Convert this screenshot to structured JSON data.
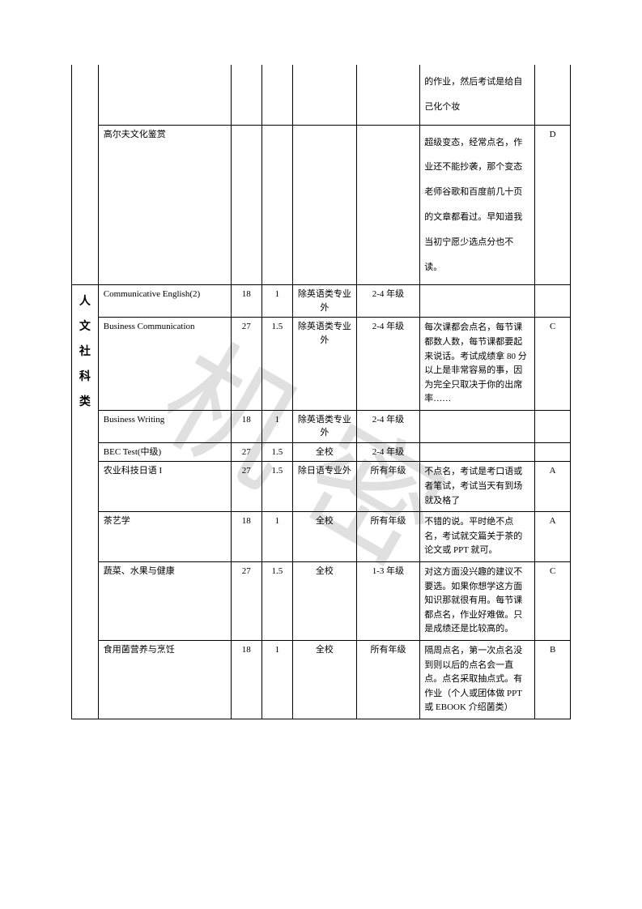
{
  "watermark_text": "机密",
  "category_label": "人文社科类",
  "rows": [
    {
      "course": "",
      "hours": "",
      "credits": "",
      "scope": "",
      "grades": "",
      "comment": "的作业，然后考试是给自己化个妆",
      "grade": "",
      "comment_spaced": true,
      "no_top_border": true
    },
    {
      "course": "高尔夫文化鉴赏",
      "hours": "",
      "credits": "",
      "scope": "",
      "grades": "",
      "comment": "超级变态，经常点名，作业还不能抄袭，那个变态老师谷歌和百度前几十页 的文章都看过。早知道我当初宁愿少选点分也不读。",
      "grade": "D",
      "comment_spaced": true
    },
    {
      "course": "Communicative English(2)",
      "hours": "18",
      "credits": "1",
      "scope": "除英语类专业外",
      "grades": "2-4 年级",
      "comment": "",
      "grade": ""
    },
    {
      "course": "Business Communication",
      "hours": "27",
      "credits": "1.5",
      "scope": "除英语类专业外",
      "grades": "2-4 年级",
      "comment": "每次课都会点名，每节课都数人数，每节课都要起来说话。考试成绩拿 80 分以上是非常容易的事，因为完全只取决于你的出席率……",
      "grade": "C"
    },
    {
      "course": "Business Writing",
      "hours": "18",
      "credits": "1",
      "scope": "除英语类专业外",
      "grades": "2-4 年级",
      "comment": "",
      "grade": ""
    },
    {
      "course": "BEC Test(中级)",
      "hours": "27",
      "credits": "1.5",
      "scope": "全校",
      "grades": "2-4 年级",
      "comment": "",
      "grade": ""
    },
    {
      "course": "农业科技日语 I",
      "hours": "27",
      "credits": "1.5",
      "scope": "除日语专业外",
      "grades": "所有年级",
      "comment": "不点名，考试是考口语或者笔试，考试当天有到场就及格了",
      "grade": "A"
    },
    {
      "course": "茶艺学",
      "hours": "18",
      "credits": "1",
      "scope": "全校",
      "grades": "所有年级",
      "comment": "不错的说。平时绝不点名，考试就交篇关于茶的论文或 PPT 就可。",
      "grade": "A"
    },
    {
      "course": "蔬菜、水果与健康",
      "hours": "27",
      "credits": "1.5",
      "scope": "全校",
      "grades": "1-3 年级",
      "comment": "对这方面没兴趣的建议不要选。如果你想学这方面知识那就很有用。每节课都点名，作业好难做。只是成绩还是比较高的。",
      "grade": "C"
    },
    {
      "course": "食用菌营养与烹饪",
      "hours": "18",
      "credits": "1",
      "scope": "全校",
      "grades": "所有年级",
      "comment": "隔周点名，第一次点名没到则以后的点名会一直点。点名采取抽点式。有作业（个人或团体做 PPT 或 EBOOK 介绍菌类）",
      "grade": "B"
    }
  ]
}
